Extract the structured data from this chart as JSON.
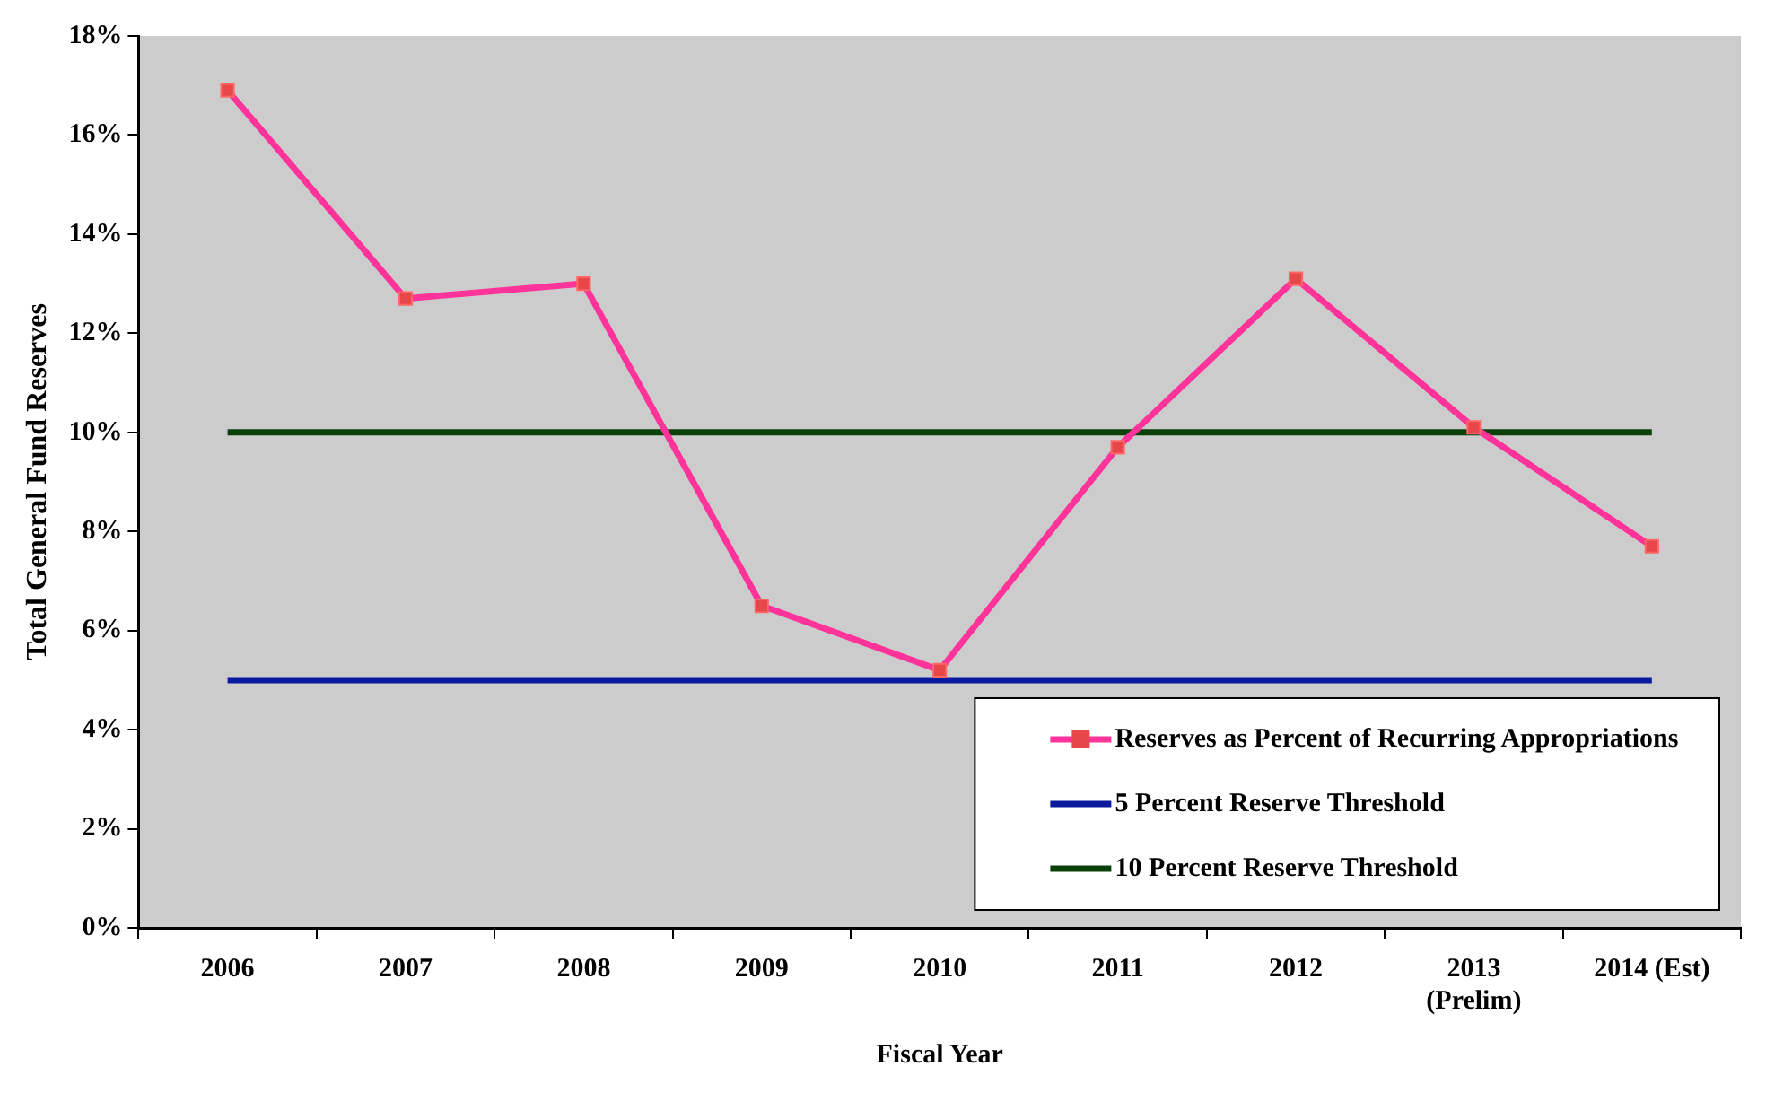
{
  "chart_data": {
    "type": "line",
    "xlabel": "Fiscal Year",
    "ylabel": "Total General Fund Reserves",
    "categories": [
      "2006",
      "2007",
      "2008",
      "2009",
      "2010",
      "2011",
      "2012",
      "2013\n(Prelim)",
      "2014 (Est)"
    ],
    "series": [
      {
        "name": "Reserves as Percent of Recurring Appropriations",
        "color": "#ff3399",
        "marker": "square",
        "values": [
          16.9,
          12.7,
          13.0,
          6.5,
          5.2,
          9.7,
          13.1,
          10.1,
          7.7
        ]
      },
      {
        "name": "5 Percent Reserve Threshold",
        "color": "#0a1a9e",
        "marker": "none",
        "values": [
          5,
          5,
          5,
          5,
          5,
          5,
          5,
          5,
          5
        ]
      },
      {
        "name": "10 Percent Reserve Threshold",
        "color": "#0a400a",
        "marker": "none",
        "values": [
          10,
          10,
          10,
          10,
          10,
          10,
          10,
          10,
          10
        ]
      }
    ],
    "ylim": [
      0,
      18
    ],
    "yticks": [
      {
        "value": 0,
        "label": "0%"
      },
      {
        "value": 2,
        "label": "2%"
      },
      {
        "value": 4,
        "label": "4%"
      },
      {
        "value": 6,
        "label": "6%"
      },
      {
        "value": 8,
        "label": "8%"
      },
      {
        "value": 10,
        "label": "10%"
      },
      {
        "value": 12,
        "label": "12%"
      },
      {
        "value": 14,
        "label": "14%"
      },
      {
        "value": 16,
        "label": "16%"
      },
      {
        "value": 18,
        "label": "18%"
      }
    ],
    "grid": false,
    "legend": "bottom right",
    "line_style": "solid"
  }
}
